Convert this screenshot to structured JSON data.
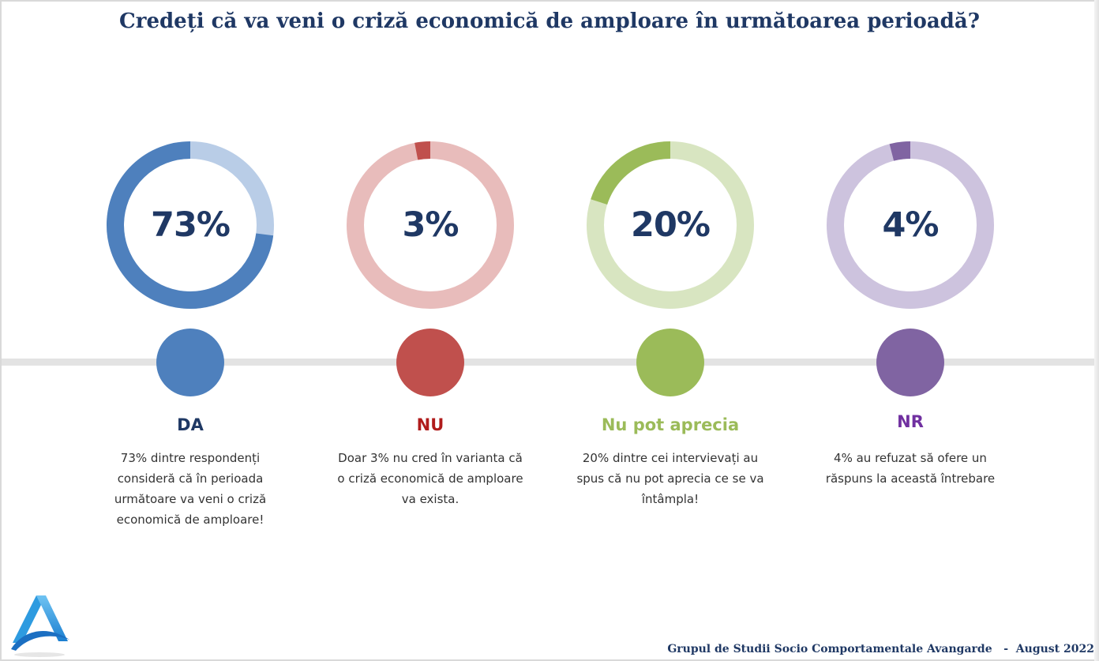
{
  "title": "Credeți că va veni o criză economică de amploare în următoarea perioadă?",
  "footer": "Grupul de Studii Socio Comportamentale Avangarde   -  August 2022",
  "logo": {
    "icon": "avangarde-a-logo-icon",
    "color": "#2e9be0"
  },
  "chart_data": {
    "type": "pie",
    "subtype": "donut-set",
    "items": [
      {
        "label": "DA",
        "value": 73,
        "display": "73%",
        "color": "#4e80bd",
        "track_color": "#b9cde7",
        "label_color": "#1f3864",
        "description": "73% dintre respondenți consideră că în perioada următoare va veni o criză economică de amploare!"
      },
      {
        "label": "NU",
        "value": 3,
        "display": "3%",
        "color": "#c0504d",
        "track_color": "#e8bcbb",
        "label_color": "#b01c1c",
        "description": "Doar 3% nu cred în varianta că o criză economică de amploare va exista."
      },
      {
        "label": "Nu pot aprecia",
        "value": 20,
        "display": "20%",
        "color": "#9bbb59",
        "track_color": "#d8e5c1",
        "label_color": "#9bbb59",
        "description": "20% dintre cei intervievați au spus că nu pot aprecia ce se va întâmpla!"
      },
      {
        "label": "NR",
        "value": 4,
        "display": "4%",
        "color": "#8064a2",
        "track_color": "#cdc3de",
        "label_color": "#7030a0",
        "description": "4% au refuzat să ofere un răspuns la această întrebare"
      }
    ]
  }
}
